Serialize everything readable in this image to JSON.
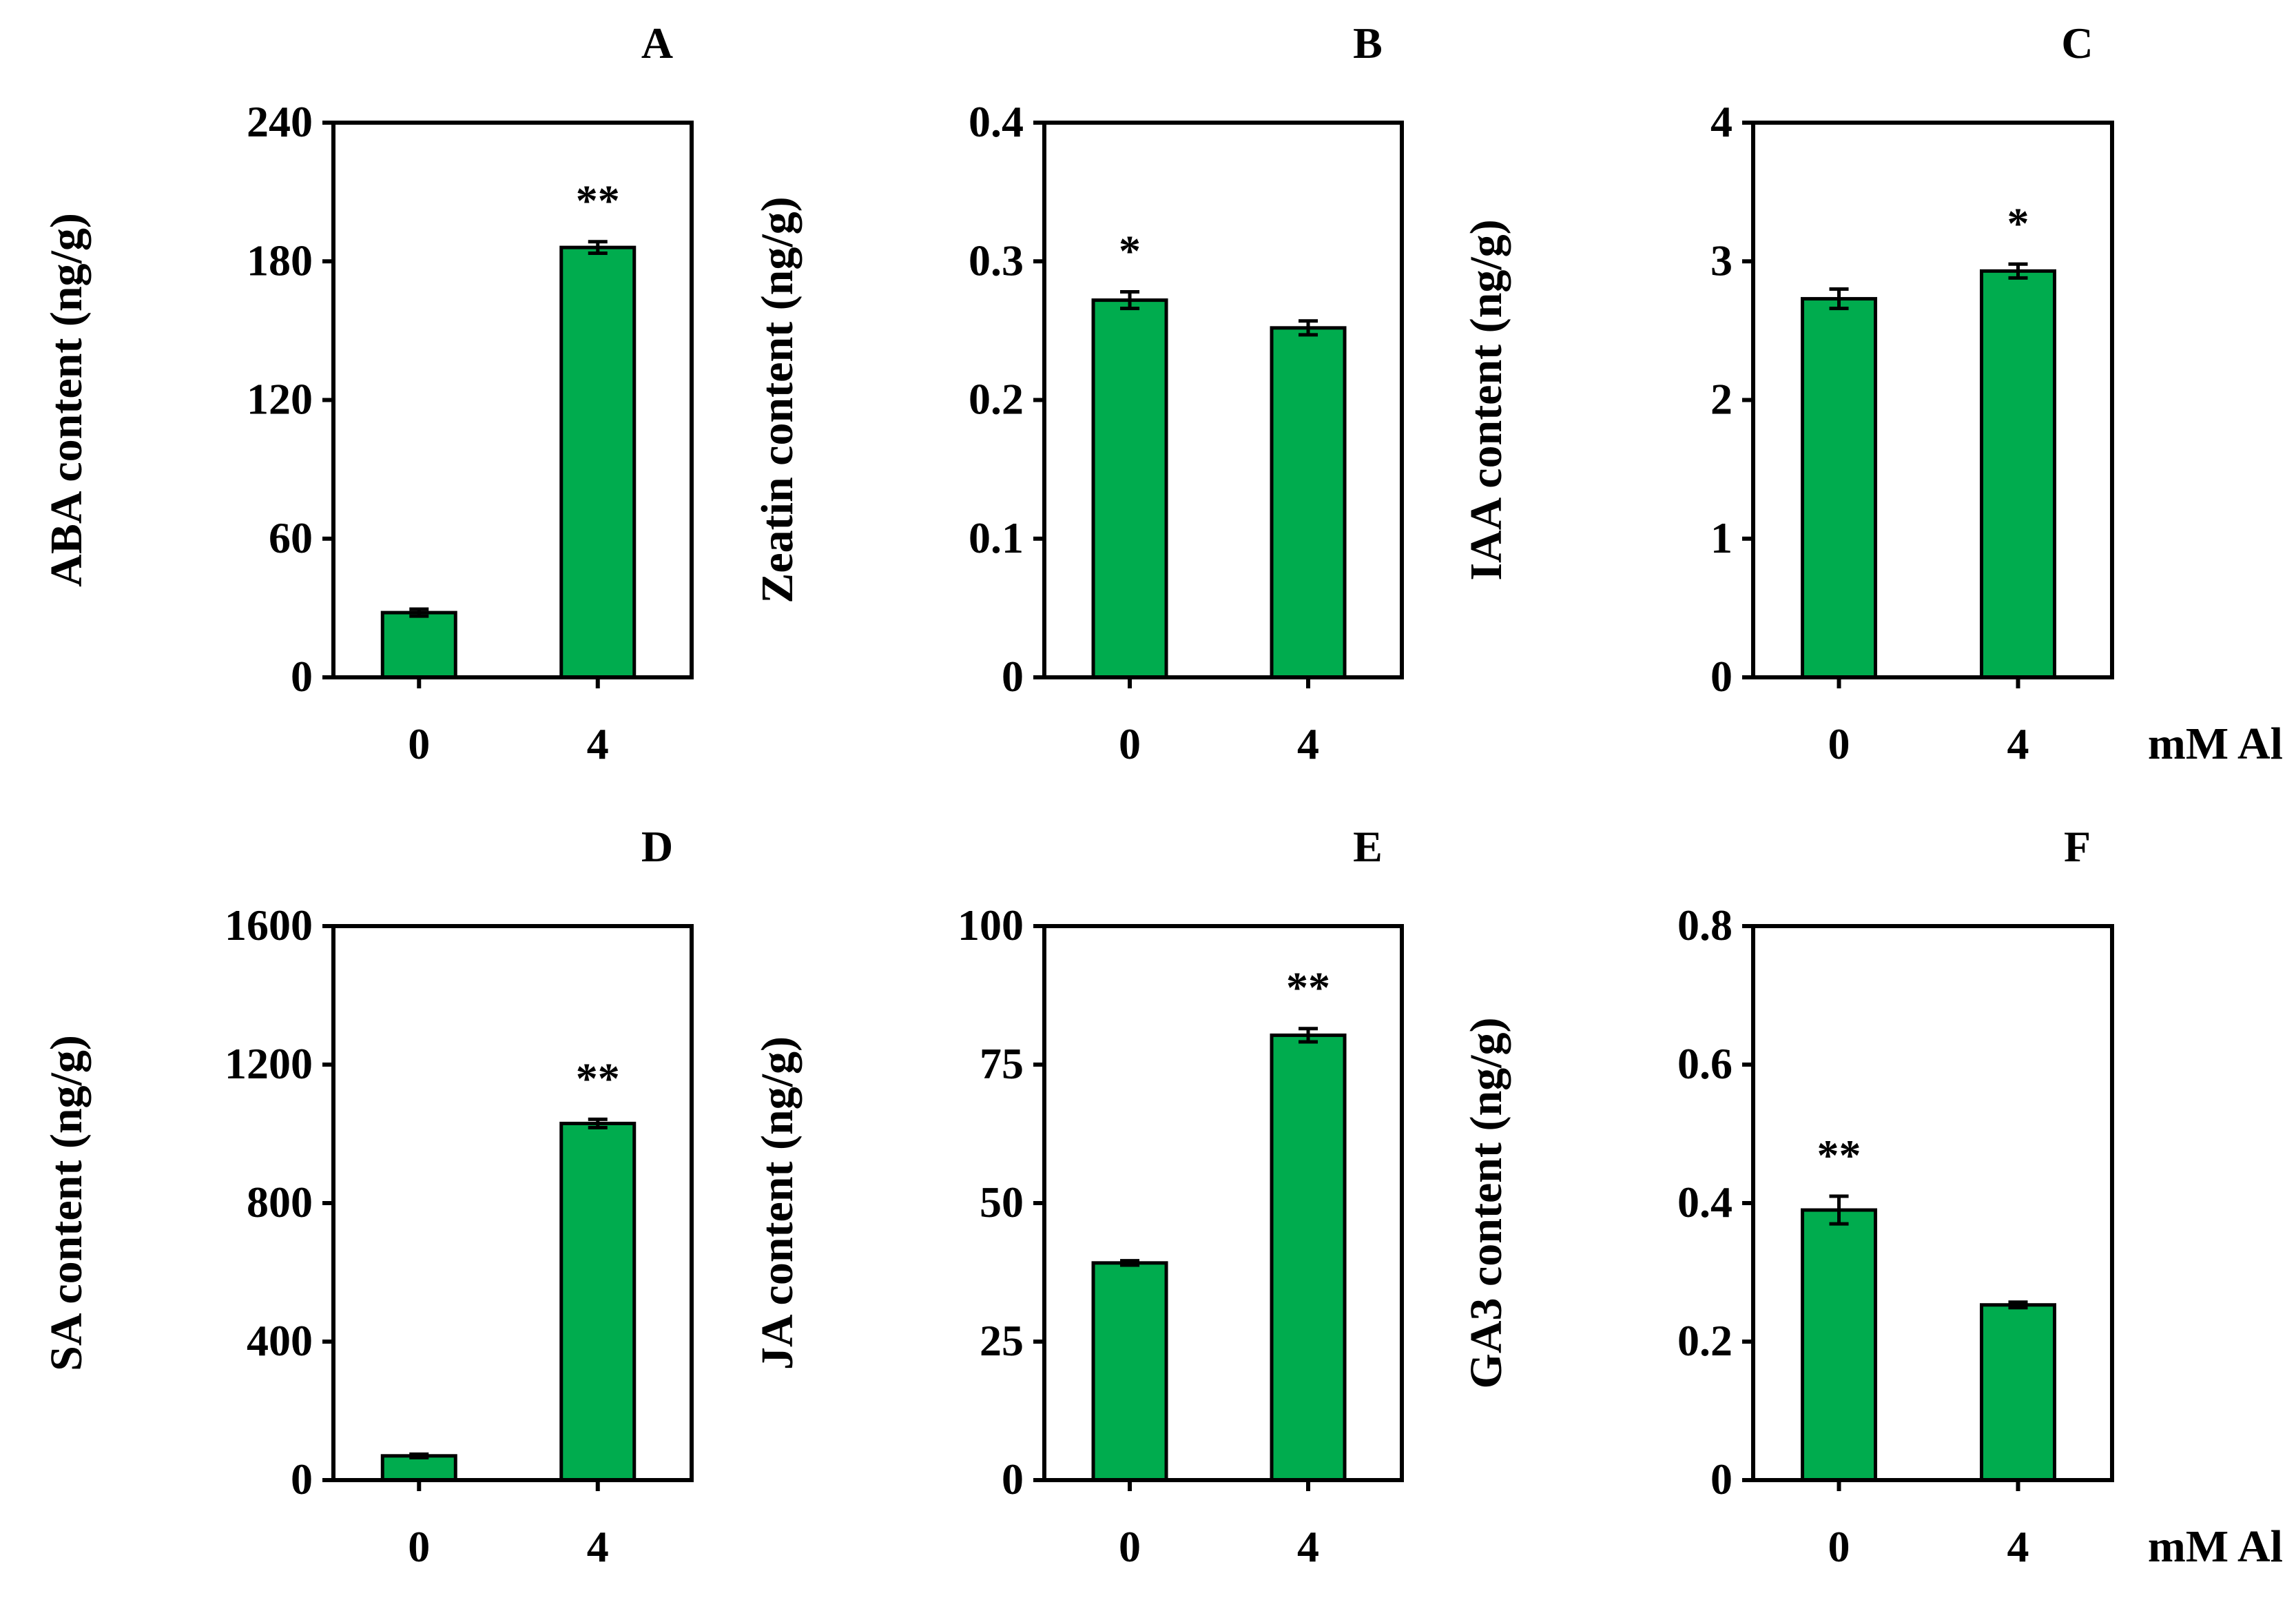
{
  "colors": {
    "bar": "#00ac4e",
    "stroke": "#000000",
    "background": "#ffffff"
  },
  "chart_data": [
    {
      "type": "bar",
      "panel": "A",
      "title": "A",
      "ylabel": "ABA content (ng/g)",
      "xlabel": "",
      "categories": [
        "0",
        "4"
      ],
      "values": [
        28,
        186
      ],
      "errors": [
        1.5,
        2.5
      ],
      "significance": [
        "",
        "**"
      ],
      "ylim": [
        0,
        240
      ],
      "yticks": [
        0,
        60,
        120,
        180,
        240
      ],
      "ytick_labels": [
        "0",
        "60",
        "120",
        "180",
        "240"
      ]
    },
    {
      "type": "bar",
      "panel": "B",
      "title": "B",
      "ylabel": "Zeatin content (ng/g)",
      "xlabel": "",
      "categories": [
        "0",
        "4"
      ],
      "values": [
        0.272,
        0.252
      ],
      "errors": [
        0.006,
        0.005
      ],
      "significance": [
        "*",
        ""
      ],
      "ylim": [
        0,
        0.4
      ],
      "yticks": [
        0,
        0.1,
        0.2,
        0.3,
        0.4
      ],
      "ytick_labels": [
        "0",
        "0.1",
        "0.2",
        "0.3",
        "0.4"
      ]
    },
    {
      "type": "bar",
      "panel": "C",
      "title": "C",
      "ylabel": "IAA content (ng/g)",
      "xlabel": "mM Al",
      "categories": [
        "0",
        "4"
      ],
      "values": [
        2.73,
        2.93
      ],
      "errors": [
        0.07,
        0.05
      ],
      "significance": [
        "",
        "*"
      ],
      "ylim": [
        0,
        4
      ],
      "yticks": [
        0,
        1,
        2,
        3,
        4
      ],
      "ytick_labels": [
        "0",
        "1",
        "2",
        "3",
        "4"
      ]
    },
    {
      "type": "bar",
      "panel": "D",
      "title": "D",
      "ylabel": "SA content (ng/g)",
      "xlabel": "",
      "categories": [
        "0",
        "4"
      ],
      "values": [
        70,
        1030
      ],
      "errors": [
        5,
        12
      ],
      "significance": [
        "",
        "**"
      ],
      "ylim": [
        0,
        1600
      ],
      "yticks": [
        0,
        400,
        800,
        1200,
        1600
      ],
      "ytick_labels": [
        "0",
        "400",
        "800",
        "1200",
        "1600"
      ]
    },
    {
      "type": "bar",
      "panel": "E",
      "title": "E",
      "ylabel": "JA content (ng/g)",
      "xlabel": "",
      "categories": [
        "0",
        "4"
      ],
      "values": [
        39.2,
        80.3
      ],
      "errors": [
        0.4,
        1.2
      ],
      "significance": [
        "",
        "**"
      ],
      "ylim": [
        0,
        100
      ],
      "yticks": [
        0,
        25,
        50,
        75,
        100
      ],
      "ytick_labels": [
        "0",
        "25",
        "50",
        "75",
        "100"
      ]
    },
    {
      "type": "bar",
      "panel": "F",
      "title": "F",
      "ylabel": "GA3 content (ng/g)",
      "xlabel": "mM Al",
      "categories": [
        "0",
        "4"
      ],
      "values": [
        0.39,
        0.253
      ],
      "errors": [
        0.02,
        0.004
      ],
      "significance": [
        "**",
        ""
      ],
      "ylim": [
        0,
        0.8
      ],
      "yticks": [
        0,
        0.2,
        0.4,
        0.6,
        0.8
      ],
      "ytick_labels": [
        "0",
        "0.2",
        "0.4",
        "0.6",
        "0.8"
      ]
    }
  ]
}
